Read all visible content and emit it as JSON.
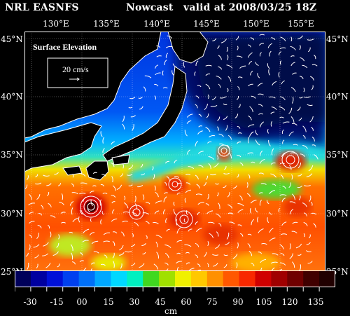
{
  "header": {
    "left": "NRL EASNFS",
    "mid": "Nowcast",
    "right": "valid at 2008/03/25 18Z"
  },
  "longitudes": [
    "130°E",
    "135°E",
    "140°E",
    "145°E",
    "150°E",
    "155°E"
  ],
  "latitudes": [
    "45°N",
    "40°N",
    "35°N",
    "30°N",
    "25°N"
  ],
  "legend": {
    "title": "Surface Elevation",
    "reference": "20 cm/s"
  },
  "colorbar": {
    "labels": [
      "-30",
      "-15",
      "00",
      "15",
      "30",
      "45",
      "60",
      "75",
      "90",
      "105",
      "120",
      "135"
    ],
    "unit": "cm",
    "colors": [
      "#00005a",
      "#0000a0",
      "#0010d8",
      "#0040f0",
      "#0070f8",
      "#00a8ff",
      "#00d8ff",
      "#00f0c0",
      "#40d820",
      "#a0e000",
      "#f0f000",
      "#ffc800",
      "#ff9000",
      "#ff5800",
      "#f82800",
      "#d00000",
      "#a00000",
      "#700000",
      "#400000",
      "#200000"
    ]
  },
  "colors": {
    "land": "#000000",
    "coast": "#ffffff",
    "vector": "#ffffff"
  }
}
